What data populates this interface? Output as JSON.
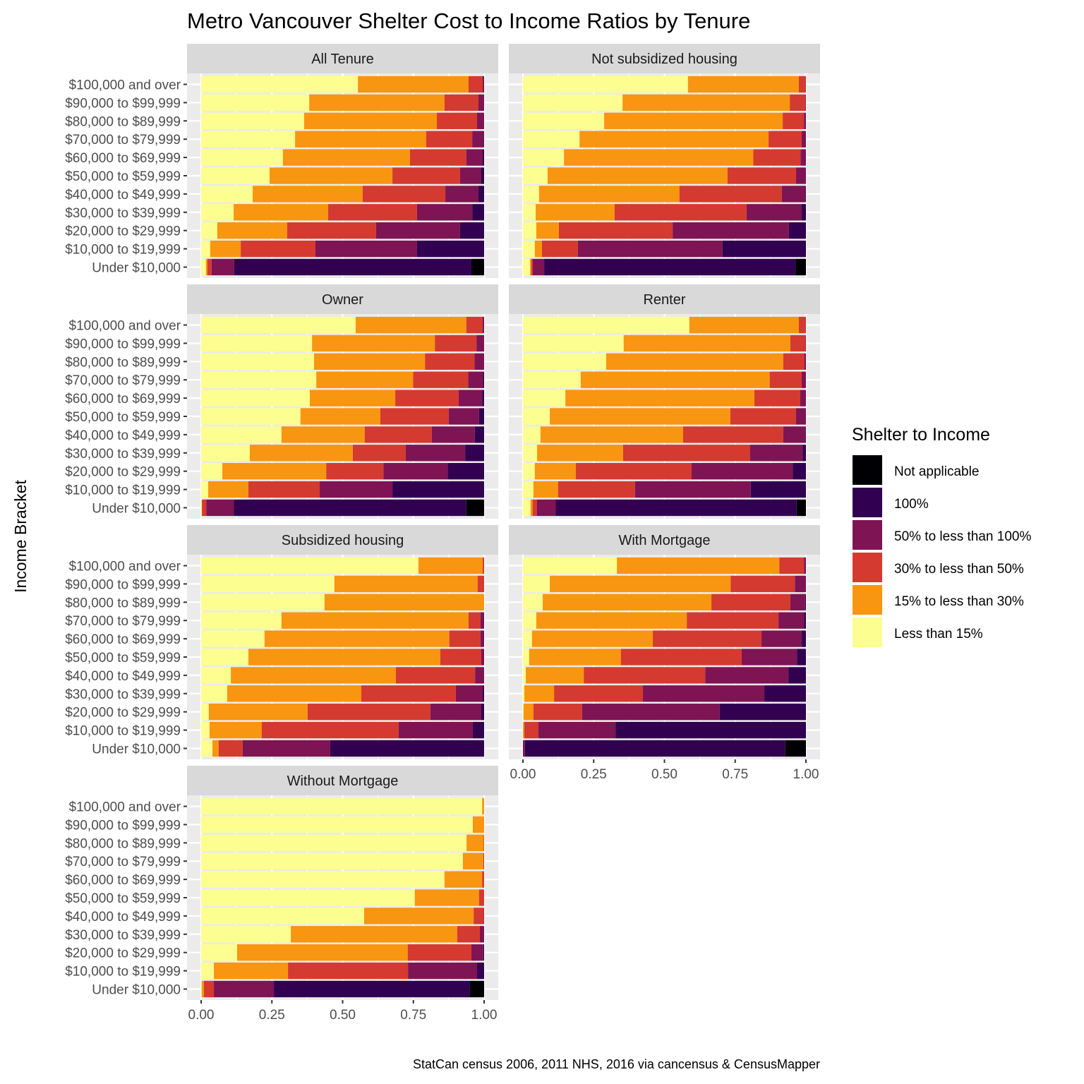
{
  "chart_data": {
    "type": "bar",
    "orientation": "horizontal",
    "stacked": true,
    "title": "Metro Vancouver Shelter Cost to Income Ratios by Tenure",
    "xlabel": "",
    "ylabel": "Income Bracket",
    "caption": "StatCan census 2006, 2011 NHS, 2016 via cancensus & CensusMapper",
    "xlim": [
      0,
      1
    ],
    "xticks": [
      "0.00",
      "0.25",
      "0.50",
      "0.75",
      "1.00"
    ],
    "xtick_values": [
      0,
      0.25,
      0.5,
      0.75,
      1.0
    ],
    "grid": true,
    "legend": {
      "title": "Shelter to Income",
      "placement": "right",
      "entries": [
        {
          "name": "Not applicable",
          "color": "#000004"
        },
        {
          "name": "100%",
          "color": "#320050"
        },
        {
          "name": "50% to less than 100%",
          "color": "#7e1454"
        },
        {
          "name": "30% to less than 50%",
          "color": "#d43a2f"
        },
        {
          "name": "15% to less than 30%",
          "color": "#f89511"
        },
        {
          "name": "Less than 15%",
          "color": "#fcff8f"
        }
      ]
    },
    "segment_order": [
      "Less than 15%",
      "15% to less than 30%",
      "30% to less than 50%",
      "50% to less than 100%",
      "100%",
      "Not applicable"
    ],
    "categories": [
      "$100,000 and over",
      "$90,000 to $99,999",
      "$80,000 to $89,999",
      "$70,000 to $79,999",
      "$60,000 to $69,999",
      "$50,000 to $59,999",
      "$40,000 to $49,999",
      "$30,000 to $39,999",
      "$20,000 to $29,999",
      "$10,000 to $19,999",
      "Under $10,000"
    ],
    "panels": [
      {
        "name": "All Tenure",
        "rows": [
          [
            0.554,
            0.391,
            0.05,
            0.005,
            0.0,
            0.0
          ],
          [
            0.382,
            0.478,
            0.12,
            0.02,
            0.0,
            0.0
          ],
          [
            0.364,
            0.469,
            0.142,
            0.025,
            0.0,
            0.0
          ],
          [
            0.332,
            0.463,
            0.163,
            0.04,
            0.002,
            0.0
          ],
          [
            0.289,
            0.449,
            0.199,
            0.058,
            0.005,
            0.0
          ],
          [
            0.242,
            0.434,
            0.239,
            0.075,
            0.01,
            0.0
          ],
          [
            0.182,
            0.389,
            0.292,
            0.117,
            0.02,
            0.0
          ],
          [
            0.115,
            0.334,
            0.314,
            0.195,
            0.042,
            0.0
          ],
          [
            0.057,
            0.247,
            0.314,
            0.297,
            0.085,
            0.0
          ],
          [
            0.032,
            0.108,
            0.264,
            0.359,
            0.237,
            0.0
          ],
          [
            0.017,
            0.005,
            0.015,
            0.08,
            0.838,
            0.045
          ]
        ]
      },
      {
        "name": "Not subsidized housing",
        "rows": [
          [
            0.583,
            0.392,
            0.025,
            0.0,
            0.0,
            0.0
          ],
          [
            0.352,
            0.591,
            0.055,
            0.002,
            0.0,
            0.0
          ],
          [
            0.287,
            0.631,
            0.075,
            0.007,
            0.0,
            0.0
          ],
          [
            0.2,
            0.668,
            0.117,
            0.015,
            0.0,
            0.0
          ],
          [
            0.145,
            0.669,
            0.167,
            0.019,
            0.0,
            0.0
          ],
          [
            0.087,
            0.636,
            0.242,
            0.035,
            0.0,
            0.0
          ],
          [
            0.057,
            0.496,
            0.362,
            0.083,
            0.002,
            0.0
          ],
          [
            0.045,
            0.279,
            0.466,
            0.195,
            0.015,
            0.0
          ],
          [
            0.047,
            0.08,
            0.402,
            0.411,
            0.06,
            0.0
          ],
          [
            0.042,
            0.025,
            0.127,
            0.511,
            0.295,
            0.0
          ],
          [
            0.025,
            0.005,
            0.005,
            0.04,
            0.888,
            0.037
          ]
        ]
      },
      {
        "name": "Owner",
        "rows": [
          [
            0.546,
            0.391,
            0.058,
            0.005,
            0.0,
            0.0
          ],
          [
            0.392,
            0.434,
            0.147,
            0.027,
            0.0,
            0.0
          ],
          [
            0.399,
            0.392,
            0.175,
            0.034,
            0.0,
            0.0
          ],
          [
            0.407,
            0.342,
            0.195,
            0.052,
            0.004,
            0.0
          ],
          [
            0.384,
            0.302,
            0.224,
            0.083,
            0.007,
            0.0
          ],
          [
            0.351,
            0.282,
            0.242,
            0.107,
            0.018,
            0.0
          ],
          [
            0.284,
            0.294,
            0.237,
            0.152,
            0.033,
            0.0
          ],
          [
            0.172,
            0.364,
            0.187,
            0.21,
            0.067,
            0.0
          ],
          [
            0.075,
            0.367,
            0.202,
            0.227,
            0.129,
            0.0
          ],
          [
            0.025,
            0.142,
            0.252,
            0.257,
            0.324,
            0.0
          ],
          [
            0.002,
            0.001,
            0.015,
            0.098,
            0.821,
            0.063
          ]
        ]
      },
      {
        "name": "Renter",
        "rows": [
          [
            0.588,
            0.387,
            0.025,
            0.0,
            0.0,
            0.0
          ],
          [
            0.356,
            0.589,
            0.053,
            0.002,
            0.0,
            0.0
          ],
          [
            0.294,
            0.626,
            0.075,
            0.005,
            0.0,
            0.0
          ],
          [
            0.204,
            0.668,
            0.113,
            0.015,
            0.0,
            0.0
          ],
          [
            0.15,
            0.668,
            0.162,
            0.02,
            0.0,
            0.0
          ],
          [
            0.095,
            0.638,
            0.232,
            0.035,
            0.0,
            0.0
          ],
          [
            0.062,
            0.504,
            0.354,
            0.078,
            0.002,
            0.0
          ],
          [
            0.05,
            0.304,
            0.449,
            0.185,
            0.012,
            0.0
          ],
          [
            0.042,
            0.145,
            0.409,
            0.357,
            0.047,
            0.0
          ],
          [
            0.037,
            0.087,
            0.272,
            0.409,
            0.195,
            0.0
          ],
          [
            0.027,
            0.007,
            0.015,
            0.067,
            0.851,
            0.033
          ]
        ]
      },
      {
        "name": "Subsidized housing",
        "rows": [
          [
            0.768,
            0.227,
            0.005,
            0.0,
            0.0,
            0.0
          ],
          [
            0.471,
            0.506,
            0.023,
            0.0,
            0.0,
            0.0
          ],
          [
            0.436,
            0.564,
            0.0,
            0.0,
            0.0,
            0.0
          ],
          [
            0.284,
            0.661,
            0.042,
            0.013,
            0.0,
            0.0
          ],
          [
            0.224,
            0.653,
            0.11,
            0.013,
            0.0,
            0.0
          ],
          [
            0.167,
            0.678,
            0.145,
            0.01,
            0.0,
            0.0
          ],
          [
            0.105,
            0.583,
            0.28,
            0.032,
            0.0,
            0.0
          ],
          [
            0.092,
            0.474,
            0.334,
            0.095,
            0.005,
            0.0
          ],
          [
            0.027,
            0.349,
            0.434,
            0.18,
            0.01,
            0.0
          ],
          [
            0.03,
            0.184,
            0.484,
            0.262,
            0.04,
            0.0
          ],
          [
            0.04,
            0.022,
            0.085,
            0.309,
            0.544,
            0.0
          ]
        ]
      },
      {
        "name": "With Mortgage",
        "rows": [
          [
            0.332,
            0.574,
            0.087,
            0.007,
            0.0,
            0.0
          ],
          [
            0.095,
            0.639,
            0.227,
            0.039,
            0.0,
            0.0
          ],
          [
            0.07,
            0.596,
            0.279,
            0.052,
            0.003,
            0.0
          ],
          [
            0.047,
            0.532,
            0.324,
            0.09,
            0.007,
            0.0
          ],
          [
            0.032,
            0.427,
            0.384,
            0.142,
            0.015,
            0.0
          ],
          [
            0.022,
            0.324,
            0.427,
            0.195,
            0.032,
            0.0
          ],
          [
            0.01,
            0.205,
            0.429,
            0.294,
            0.062,
            0.0
          ],
          [
            0.005,
            0.105,
            0.314,
            0.429,
            0.147,
            0.0
          ],
          [
            0.002,
            0.035,
            0.172,
            0.486,
            0.305,
            0.0
          ],
          [
            0.0,
            0.005,
            0.05,
            0.272,
            0.673,
            0.0
          ],
          [
            0.0,
            0.0,
            0.0,
            0.007,
            0.92,
            0.073
          ]
        ]
      },
      {
        "name": "Without Mortgage",
        "rows": [
          [
            0.993,
            0.007,
            0.0,
            0.0,
            0.0,
            0.0
          ],
          [
            0.96,
            0.04,
            0.0,
            0.0,
            0.0,
            0.0
          ],
          [
            0.938,
            0.06,
            0.002,
            0.0,
            0.0,
            0.0
          ],
          [
            0.925,
            0.072,
            0.003,
            0.0,
            0.0,
            0.0
          ],
          [
            0.86,
            0.133,
            0.007,
            0.0,
            0.0,
            0.0
          ],
          [
            0.755,
            0.227,
            0.018,
            0.0,
            0.0,
            0.0
          ],
          [
            0.576,
            0.387,
            0.035,
            0.002,
            0.0,
            0.0
          ],
          [
            0.317,
            0.588,
            0.08,
            0.015,
            0.0,
            0.0
          ],
          [
            0.127,
            0.603,
            0.225,
            0.042,
            0.003,
            0.0
          ],
          [
            0.045,
            0.262,
            0.424,
            0.244,
            0.025,
            0.0
          ],
          [
            0.002,
            0.008,
            0.035,
            0.212,
            0.693,
            0.05
          ]
        ]
      }
    ]
  }
}
